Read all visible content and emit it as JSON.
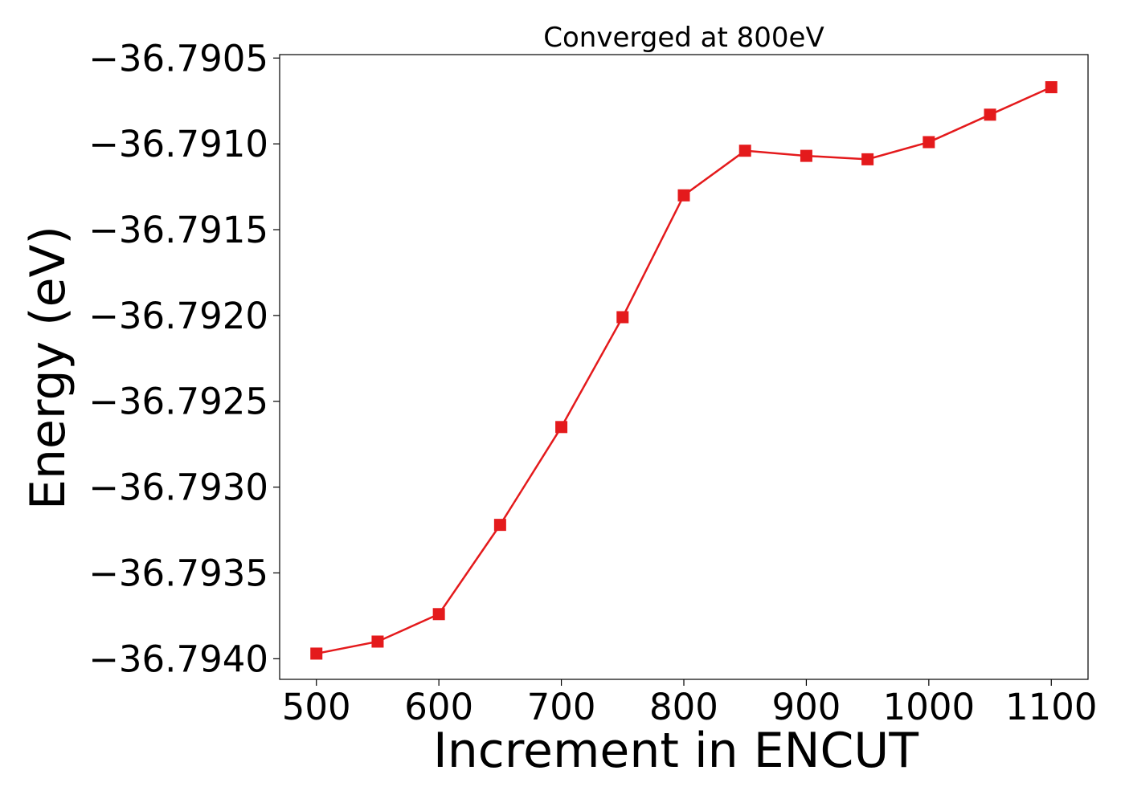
{
  "chart_data": {
    "type": "line",
    "title": "Converged at 800eV",
    "xlabel": "Increment in ENCUT",
    "ylabel": "Energy (eV)",
    "x": [
      500,
      550,
      600,
      650,
      700,
      750,
      800,
      850,
      900,
      950,
      1000,
      1050,
      1100
    ],
    "series": [
      {
        "values": [
          -36.79397,
          -36.7939,
          -36.79374,
          -36.79322,
          -36.79265,
          -36.79201,
          -36.7913,
          -36.79104,
          -36.79107,
          -36.79109,
          -36.79099,
          -36.79083,
          -36.79067
        ],
        "color": "#e41a1c",
        "marker": "square"
      }
    ],
    "xticks": [
      "500",
      "600",
      "700",
      "800",
      "900",
      "1000",
      "1100"
    ],
    "xtick_values": [
      500,
      600,
      700,
      800,
      900,
      1000,
      1100
    ],
    "yticks": [
      "−36.7940",
      "−36.7935",
      "−36.7930",
      "−36.7925",
      "−36.7920",
      "−36.7915",
      "−36.7910",
      "−36.7905"
    ],
    "ytick_values": [
      -36.794,
      -36.7935,
      -36.793,
      -36.7925,
      -36.792,
      -36.7915,
      -36.791,
      -36.7905
    ],
    "xlim": [
      470,
      1130
    ],
    "ylim": [
      -36.79412,
      -36.79048
    ],
    "grid": false,
    "legend": "none"
  }
}
